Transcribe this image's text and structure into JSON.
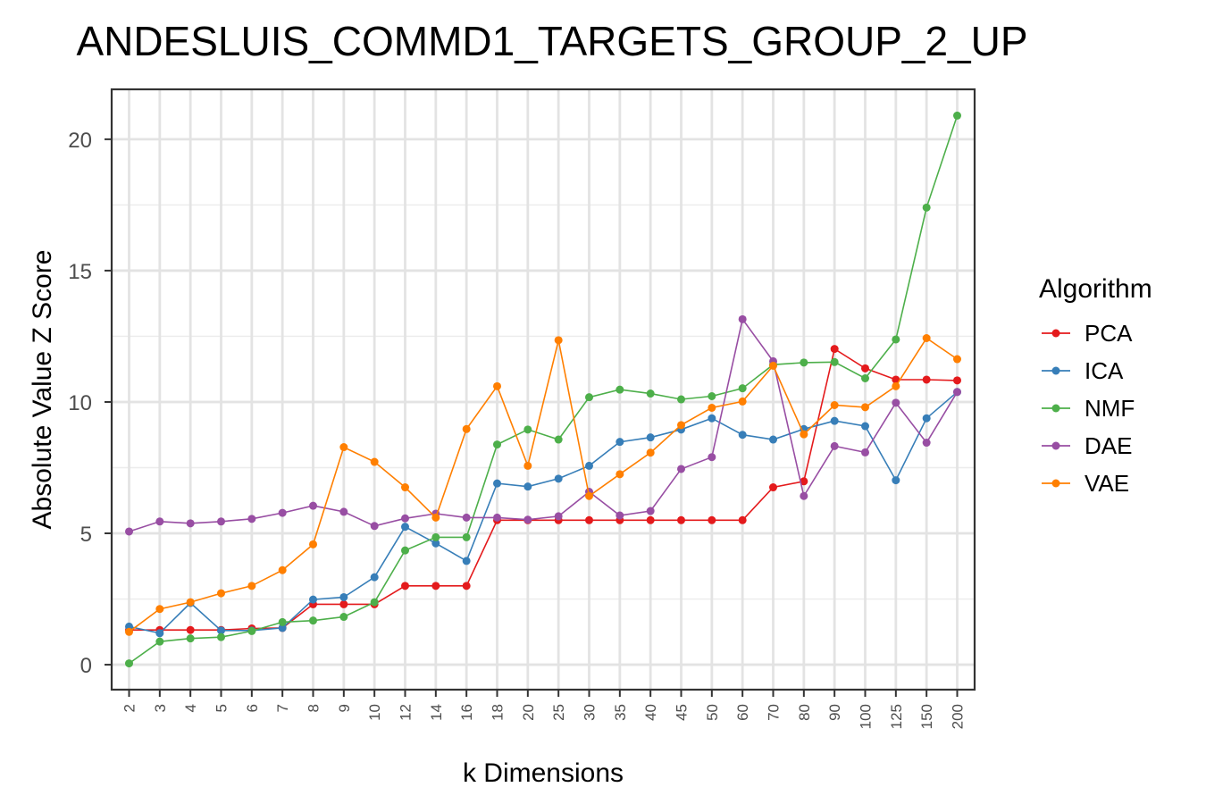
{
  "chart_data": {
    "type": "line",
    "title": "ANDESLUIS_COMMD1_TARGETS_GROUP_2_UP",
    "xlabel": "k Dimensions",
    "ylabel": "Absolute Value Z Score",
    "categories": [
      "2",
      "3",
      "4",
      "5",
      "6",
      "7",
      "8",
      "9",
      "10",
      "12",
      "14",
      "16",
      "18",
      "20",
      "25",
      "30",
      "35",
      "40",
      "45",
      "50",
      "60",
      "70",
      "80",
      "90",
      "100",
      "125",
      "150",
      "200"
    ],
    "yticks": [
      0,
      5,
      10,
      15,
      20
    ],
    "ylim": [
      -0.95,
      21.9
    ],
    "grid": true,
    "legend": {
      "title": "Algorithm",
      "position": "right"
    },
    "series": [
      {
        "name": "PCA",
        "color": "#e41a1c",
        "values": [
          1.32,
          1.32,
          1.32,
          1.32,
          1.38,
          1.4,
          2.3,
          2.3,
          2.3,
          3.0,
          3.0,
          3.0,
          5.5,
          5.5,
          5.5,
          5.5,
          5.5,
          5.5,
          5.5,
          5.5,
          5.5,
          6.75,
          6.98,
          12.02,
          11.28,
          10.85,
          10.85,
          10.82
        ]
      },
      {
        "name": "ICA",
        "color": "#377eb8",
        "values": [
          1.45,
          1.2,
          2.35,
          1.3,
          1.3,
          1.4,
          2.48,
          2.57,
          3.33,
          5.25,
          4.62,
          3.95,
          6.9,
          6.78,
          7.08,
          7.57,
          8.48,
          8.65,
          8.95,
          9.38,
          8.75,
          8.57,
          8.97,
          9.28,
          9.08,
          7.02,
          9.38,
          10.38
        ]
      },
      {
        "name": "NMF",
        "color": "#4daf4a",
        "values": [
          0.05,
          0.88,
          1.0,
          1.05,
          1.28,
          1.62,
          1.68,
          1.82,
          2.38,
          4.35,
          4.85,
          4.85,
          8.38,
          8.95,
          8.57,
          10.18,
          10.47,
          10.32,
          10.1,
          10.22,
          10.52,
          11.42,
          11.5,
          11.52,
          10.9,
          12.38,
          17.4,
          20.9
        ]
      },
      {
        "name": "DAE",
        "color": "#984ea3",
        "values": [
          5.07,
          5.45,
          5.38,
          5.45,
          5.55,
          5.78,
          6.05,
          5.82,
          5.28,
          5.57,
          5.75,
          5.6,
          5.6,
          5.52,
          5.65,
          6.58,
          5.68,
          5.85,
          7.45,
          7.9,
          13.15,
          11.55,
          6.42,
          8.32,
          8.08,
          9.97,
          8.45,
          10.38
        ]
      },
      {
        "name": "VAE",
        "color": "#ff7f00",
        "values": [
          1.25,
          2.12,
          2.38,
          2.72,
          3.0,
          3.6,
          4.58,
          8.28,
          7.72,
          6.75,
          5.6,
          8.97,
          10.6,
          7.57,
          12.35,
          6.42,
          7.25,
          8.07,
          9.12,
          9.78,
          10.02,
          11.38,
          8.77,
          9.88,
          9.8,
          10.6,
          12.43,
          11.63
        ]
      }
    ]
  }
}
